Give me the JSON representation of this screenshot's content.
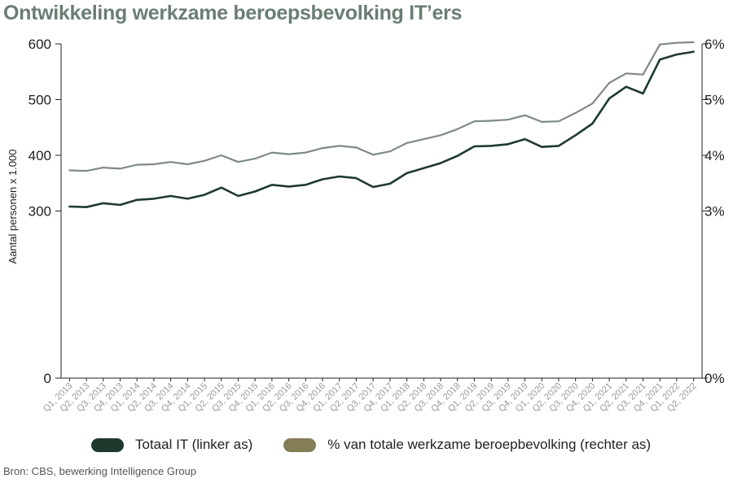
{
  "chart_data": {
    "type": "line",
    "title": "Ontwikkeling werkzame beroepsbevolking IT’ers",
    "ylabel": "Aantal personen x 1.000",
    "categories": [
      "Q1, 2013",
      "Q2, 2013",
      "Q3, 2013",
      "Q4, 2013",
      "Q1, 2014",
      "Q2, 2014",
      "Q3, 2014",
      "Q4, 2014",
      "Q1, 2015",
      "Q2, 2015",
      "Q3, 2015",
      "Q4, 2015",
      "Q1, 2016",
      "Q2, 2016",
      "Q3, 2016",
      "Q4, 2016",
      "Q1, 2017",
      "Q2, 2017",
      "Q3, 2017",
      "Q4, 2017",
      "Q1, 2018",
      "Q2, 2018",
      "Q3, 2018",
      "Q4, 2018",
      "Q1, 2019",
      "Q2, 2019",
      "Q3, 2019",
      "Q4, 2019",
      "Q1, 2020",
      "Q2, 2020",
      "Q3, 2020",
      "Q4, 2020",
      "Q1, 2021",
      "Q2, 2021",
      "Q3, 2021",
      "Q4, 2021",
      "Q1, 2022",
      "Q2, 2022"
    ],
    "y_left": {
      "ticks": [
        0,
        300,
        400,
        500,
        600
      ],
      "tick_labels": [
        "0",
        "300",
        "400",
        "500",
        "600"
      ],
      "range": [
        0,
        600
      ]
    },
    "y_right": {
      "ticks": [
        0,
        3,
        4,
        5,
        6
      ],
      "tick_labels": [
        "0%",
        "3%",
        "4%",
        "5%",
        "6%"
      ],
      "range": [
        0,
        6
      ]
    },
    "series": [
      {
        "name": "Totaal IT (linker as)",
        "axis": "left",
        "color": "#1e3a2c",
        "values": [
          308,
          307,
          314,
          311,
          320,
          322,
          327,
          322,
          329,
          342,
          327,
          335,
          347,
          344,
          347,
          357,
          362,
          359,
          343,
          349,
          368,
          377,
          386,
          399,
          416,
          417,
          420,
          429,
          415,
          417,
          436,
          457,
          502,
          523,
          511,
          572,
          581,
          586
        ]
      },
      {
        "name": "% van totale werkzame beroepbevolking (rechter as)",
        "axis": "right",
        "color": "#7e8a83",
        "legend_color": "#857d56",
        "values": [
          3.73,
          3.72,
          3.78,
          3.76,
          3.83,
          3.84,
          3.88,
          3.84,
          3.9,
          4.0,
          3.88,
          3.94,
          4.05,
          4.02,
          4.05,
          4.13,
          4.17,
          4.14,
          4.01,
          4.07,
          4.22,
          4.29,
          4.36,
          4.47,
          4.61,
          4.62,
          4.64,
          4.72,
          4.6,
          4.61,
          4.76,
          4.93,
          5.3,
          5.47,
          5.45,
          5.99,
          6.02,
          6.03
        ]
      }
    ],
    "grid": false,
    "legend_position": "bottom",
    "source": "Bron: CBS, bewerking Intelligence Group"
  }
}
